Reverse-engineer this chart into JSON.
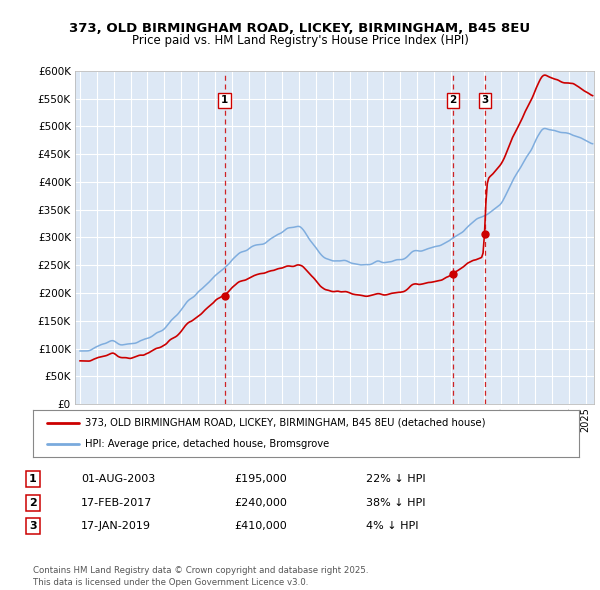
{
  "title_line1": "373, OLD BIRMINGHAM ROAD, LICKEY, BIRMINGHAM, B45 8EU",
  "title_line2": "Price paid vs. HM Land Registry's House Price Index (HPI)",
  "bg_color": "#dde8f5",
  "red_line_color": "#cc0000",
  "blue_line_color": "#7aaadd",
  "grid_color": "#ffffff",
  "ylim": [
    0,
    600000
  ],
  "yticks": [
    0,
    50000,
    100000,
    150000,
    200000,
    250000,
    300000,
    350000,
    400000,
    450000,
    500000,
    550000,
    600000
  ],
  "ytick_labels": [
    "£0",
    "£50K",
    "£100K",
    "£150K",
    "£200K",
    "£250K",
    "£300K",
    "£350K",
    "£400K",
    "£450K",
    "£500K",
    "£550K",
    "£600K"
  ],
  "transactions": [
    {
      "num": 1,
      "date": "01-AUG-2003",
      "price": 195000,
      "hpi_rel": "22% ↓ HPI",
      "x_year": 2003.58
    },
    {
      "num": 2,
      "date": "17-FEB-2017",
      "price": 240000,
      "hpi_rel": "38% ↓ HPI",
      "x_year": 2017.12
    },
    {
      "num": 3,
      "date": "17-JAN-2019",
      "price": 410000,
      "hpi_rel": "4% ↓ HPI",
      "x_year": 2019.04
    }
  ],
  "legend_line1": "373, OLD BIRMINGHAM ROAD, LICKEY, BIRMINGHAM, B45 8EU (detached house)",
  "legend_line2": "HPI: Average price, detached house, Bromsgrove",
  "footnote": "Contains HM Land Registry data © Crown copyright and database right 2025.\nThis data is licensed under the Open Government Licence v3.0.",
  "xmin": 1994.7,
  "xmax": 2025.5,
  "hpi_seed": 12,
  "prop_noise_seed": 7
}
